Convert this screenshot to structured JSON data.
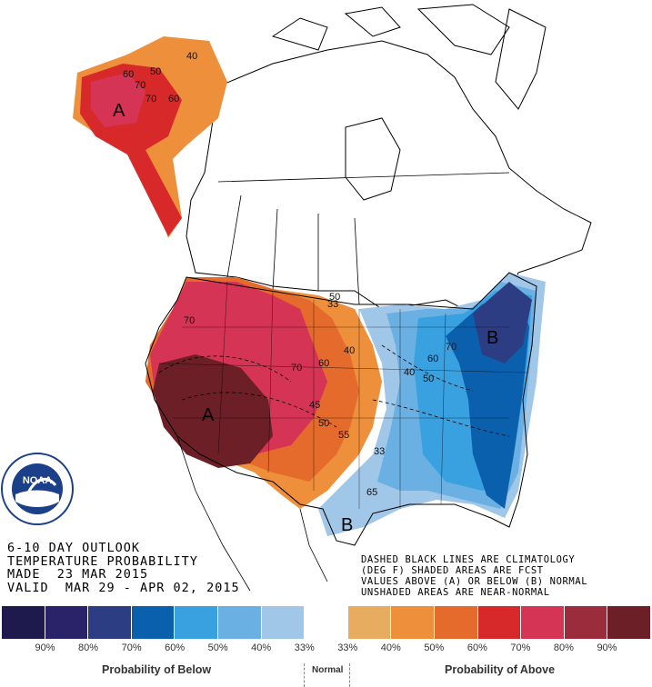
{
  "title_lines": [
    "6-10 DAY OUTLOOK",
    "TEMPERATURE PROBABILITY",
    "MADE  23 MAR 2015",
    "VALID  MAR 29 - APR 02, 2015"
  ],
  "note_lines": [
    "DASHED BLACK LINES ARE CLIMATOLOGY",
    "(DEG F) SHADED AREAS ARE FCST",
    "VALUES ABOVE (A) OR BELOW (B) NORMAL",
    "UNSHADED AREAS ARE NEAR-NORMAL"
  ],
  "logo": {
    "text": "NOAA",
    "ring_text": "NATIONAL OCEANIC AND ATMOSPHERIC ADMINISTRATION · U.S. DEPARTMENT OF COMMERCE"
  },
  "map_labels": {
    "alaska_letter": "A",
    "west_letter": "A",
    "east_letter": "B",
    "texas_letter": "B",
    "contours": [
      "40",
      "50",
      "60",
      "70",
      "70",
      "60",
      "70",
      "60",
      "50",
      "40",
      "33",
      "45",
      "50",
      "55",
      "33",
      "40",
      "50",
      "60",
      "70",
      "65",
      "70"
    ]
  },
  "legend": {
    "colors": [
      "#1e1a4e",
      "#2a236a",
      "#2d3d84",
      "#0b60ad",
      "#3aa1e0",
      "#6bb0e3",
      "#a1c7e8",
      "#ffffff",
      "#e7ac5f",
      "#ee8f3c",
      "#e56b2d",
      "#d8292a",
      "#d63455",
      "#9b2c3c",
      "#6c1f26"
    ],
    "ticks": [
      "90%",
      "80%",
      "70%",
      "60%",
      "50%",
      "40%",
      "33%",
      "33%",
      "40%",
      "50%",
      "60%",
      "70%",
      "80%",
      "90%"
    ],
    "caption_below": "Probability of Below",
    "caption_normal": "Normal",
    "caption_above": "Probability of Above"
  }
}
